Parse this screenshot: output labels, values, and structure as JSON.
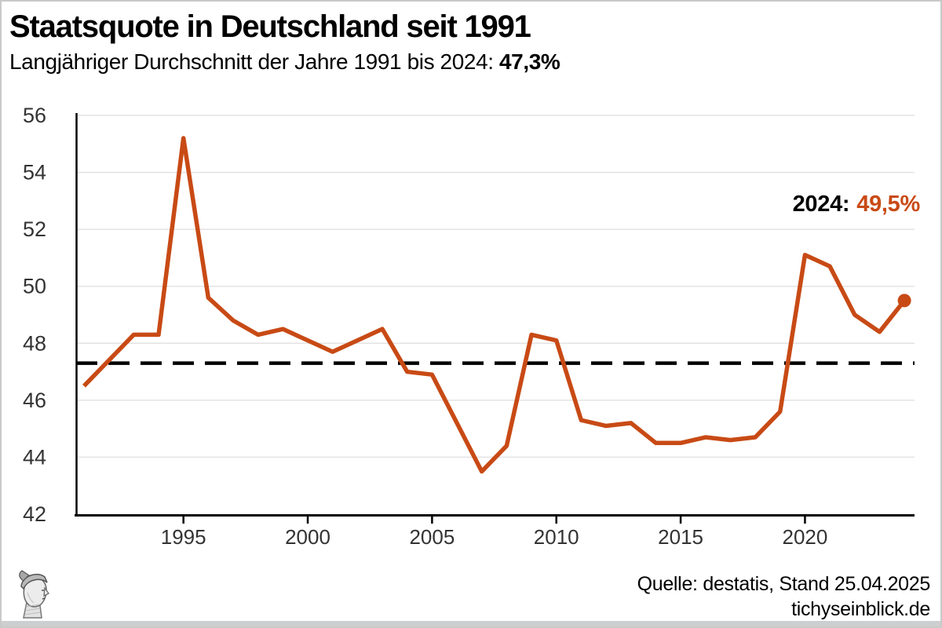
{
  "header": {
    "title": "Staatsquote in Deutschland seit 1991",
    "subtitle_prefix": "Langjähriger Durchschnitt der Jahre 1991 bis 2024: ",
    "subtitle_value": "47,3%"
  },
  "annotation": {
    "year_label": "2024:",
    "value_label": "49,5%"
  },
  "footer": {
    "source": "Quelle: destatis, Stand 25.04.2025",
    "site": "tichyseinblick.de"
  },
  "logo": {
    "name": "hermes-head-engraving"
  },
  "colors": {
    "line": "#c84a15",
    "accent_text": "#c84a15",
    "average_line": "#000000",
    "grid": "#e3e3e3",
    "axis": "#000000",
    "tick_label": "#333333",
    "bottom_bar": "#cdced0"
  },
  "chart_data": {
    "type": "line",
    "title": "Staatsquote in Deutschland seit 1991",
    "series_name": "Staatsquote",
    "unit": "%",
    "x": [
      1991,
      1992,
      1993,
      1994,
      1995,
      1996,
      1997,
      1998,
      1999,
      2000,
      2001,
      2002,
      2003,
      2004,
      2005,
      2006,
      2007,
      2008,
      2009,
      2010,
      2011,
      2012,
      2013,
      2014,
      2015,
      2016,
      2017,
      2018,
      2019,
      2020,
      2021,
      2022,
      2023,
      2024
    ],
    "values": [
      46.5,
      47.4,
      48.3,
      48.3,
      55.2,
      49.6,
      48.8,
      48.3,
      48.5,
      48.1,
      47.7,
      48.1,
      48.5,
      47.0,
      46.9,
      45.2,
      43.5,
      44.4,
      48.3,
      48.1,
      45.3,
      45.1,
      45.2,
      44.5,
      44.5,
      44.7,
      44.6,
      44.7,
      45.6,
      51.1,
      50.7,
      49.0,
      48.4,
      49.5
    ],
    "average": 47.3,
    "average_line_style": "dashed",
    "ylim": [
      42,
      56
    ],
    "yticks": [
      42,
      44,
      46,
      48,
      50,
      52,
      54,
      56
    ],
    "xticks": [
      1995,
      2000,
      2005,
      2010,
      2015,
      2020
    ],
    "xlabel": "",
    "ylabel": "",
    "grid": "horizontal",
    "legend": "none",
    "last_point_marker": true
  }
}
